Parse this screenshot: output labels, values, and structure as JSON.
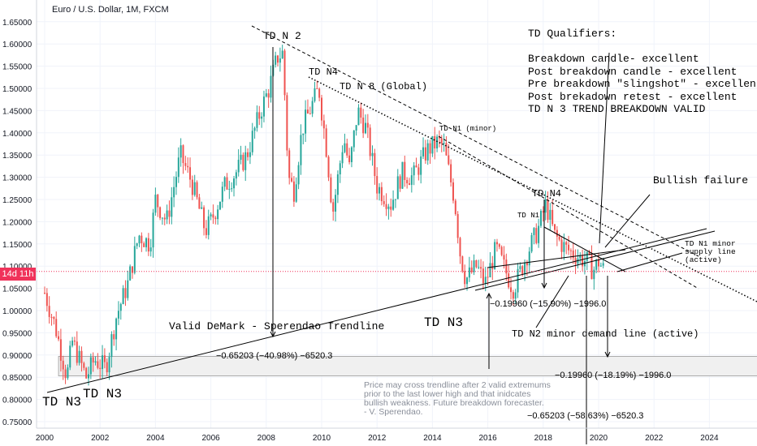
{
  "header": {
    "title": "Euro / U.S. Dollar, 1M, FXCM"
  },
  "price_badge": "14d 11h",
  "qualifiers": [
    "TD Qualifiers:",
    "",
    "Breakdown candle- excellent",
    "Post breakdown candle - excellent",
    "Pre breakdown \"slingshot\" - excellent",
    "Post brekadown retest - excellent",
    "TD N 3 TREND BREAKDOWN VALID"
  ],
  "note_lines": [
    "Price may cross trendline after 2 valid extremums",
    "prior to the last lower high and that inidcates",
    "bullish weakness. Future breakdown forecaster.",
    "- V. Sperendao."
  ],
  "annotations": {
    "td_n2": "TD N 2",
    "td_n4_top": "TD N4",
    "td_n8": "TD N 8 (Global)",
    "td_n1_minor": "TD N1 (minor)",
    "td_n4_right": "TD N4",
    "td_n1": "TD N1",
    "bullish_failure": "Bullish failure",
    "td_n1_supply": "TD N1 minor\nsupply line\n(active)",
    "valid_demark": "Valid DeMark - Sperendao Trendline",
    "td_n3_mid": "TD N3",
    "td_n2_demand": "TD N2 minor demand line (active)",
    "td_n3_left": "TD N3",
    "td_n3_left2": "TD N3",
    "measure_1": "−0.65203 (−40.98%) −6520.3",
    "measure_2": "−0.19960 (−15.90%) −1996.0",
    "measure_3": "−0.19960 (−18.19%) −1996.0",
    "measure_4": "−0.65203 (−58.63%) −6520.3"
  },
  "colors": {
    "up": "#26a69a",
    "down": "#ef5350",
    "price_line": "#f0325a",
    "trend": "#000000",
    "zone": "#f0f0f0"
  },
  "chart_data": {
    "type": "candlestick",
    "symbol": "Euro / U.S. Dollar",
    "interval": "1M",
    "exchange": "FXCM",
    "x_ticks": [
      2000,
      2002,
      2004,
      2006,
      2008,
      2010,
      2012,
      2014,
      2016,
      2018,
      2020,
      2022,
      2024
    ],
    "y_ticks": [
      0.75,
      0.8,
      0.85,
      0.9,
      0.95,
      1.0,
      1.05,
      1.1,
      1.15,
      1.2,
      1.25,
      1.3,
      1.35,
      1.4,
      1.45,
      1.5,
      1.55,
      1.6,
      1.65
    ],
    "y_tick_labels": [
      "0.75000",
      "0.80000",
      "0.85000",
      "0.90000",
      "0.95000",
      "1.00000",
      "1.05000",
      "1.10000",
      "1.15000",
      "1.20000",
      "1.25000",
      "1.30000",
      "1.35000",
      "1.40000",
      "1.45000",
      "1.50000",
      "1.55000",
      "1.60000",
      "1.65000"
    ],
    "ylim": [
      0.75,
      1.67
    ],
    "xlim": [
      2000.0,
      2026.1
    ],
    "current_price": 1.088,
    "path": [
      [
        2000.0,
        1.04
      ],
      [
        2000.4,
        0.96
      ],
      [
        2000.8,
        0.85
      ],
      [
        2001.0,
        0.93
      ],
      [
        2001.5,
        0.85
      ],
      [
        2001.8,
        0.89
      ],
      [
        2002.2,
        0.87
      ],
      [
        2002.6,
        0.99
      ],
      [
        2003.0,
        1.06
      ],
      [
        2003.4,
        1.17
      ],
      [
        2003.8,
        1.15
      ],
      [
        2004.0,
        1.25
      ],
      [
        2004.4,
        1.2
      ],
      [
        2004.9,
        1.35
      ],
      [
        2005.3,
        1.29
      ],
      [
        2005.8,
        1.18
      ],
      [
        2006.0,
        1.2
      ],
      [
        2006.5,
        1.28
      ],
      [
        2006.9,
        1.31
      ],
      [
        2007.3,
        1.35
      ],
      [
        2007.8,
        1.45
      ],
      [
        2008.1,
        1.5
      ],
      [
        2008.4,
        1.57
      ],
      [
        2008.6,
        1.58
      ],
      [
        2008.8,
        1.3
      ],
      [
        2009.0,
        1.27
      ],
      [
        2009.3,
        1.41
      ],
      [
        2009.9,
        1.5
      ],
      [
        2010.2,
        1.35
      ],
      [
        2010.4,
        1.22
      ],
      [
        2010.8,
        1.39
      ],
      [
        2011.0,
        1.32
      ],
      [
        2011.3,
        1.45
      ],
      [
        2011.6,
        1.41
      ],
      [
        2012.0,
        1.28
      ],
      [
        2012.5,
        1.24
      ],
      [
        2012.9,
        1.31
      ],
      [
        2013.3,
        1.3
      ],
      [
        2013.8,
        1.36
      ],
      [
        2014.2,
        1.38
      ],
      [
        2014.4,
        1.37
      ],
      [
        2014.8,
        1.25
      ],
      [
        2015.0,
        1.13
      ],
      [
        2015.2,
        1.07
      ],
      [
        2015.6,
        1.1
      ],
      [
        2015.9,
        1.06
      ],
      [
        2016.3,
        1.14
      ],
      [
        2016.9,
        1.05
      ],
      [
        2017.0,
        1.06
      ],
      [
        2017.5,
        1.14
      ],
      [
        2017.8,
        1.18
      ],
      [
        2018.1,
        1.24
      ],
      [
        2018.4,
        1.17
      ],
      [
        2018.8,
        1.14
      ],
      [
        2019.3,
        1.12
      ],
      [
        2019.6,
        1.11
      ],
      [
        2019.8,
        1.09
      ],
      [
        2020.0,
        1.11
      ],
      [
        2020.2,
        1.09
      ]
    ]
  }
}
